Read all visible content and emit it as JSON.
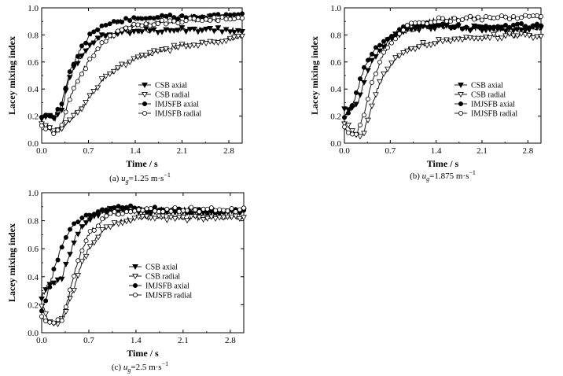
{
  "figure": {
    "panels": [
      {
        "id": "a",
        "caption_prefix": "(a) ",
        "caption_var": "u",
        "caption_sub": "g",
        "caption_value": "=1.25 m·s",
        "caption_sup": "−1"
      },
      {
        "id": "b",
        "caption_prefix": "(b) ",
        "caption_var": "u",
        "caption_sub": "g",
        "caption_value": "=1.875 m·s",
        "caption_sup": "−1"
      },
      {
        "id": "c",
        "caption_prefix": "(c) ",
        "caption_var": "u",
        "caption_sub": "g",
        "caption_value": "=2.5 m·s",
        "caption_sup": "−1"
      }
    ]
  },
  "chart_data": [
    {
      "type": "line",
      "xlabel": "Time / s",
      "ylabel": "Lacey mixing index",
      "xlim": [
        0,
        3.0
      ],
      "ylim": [
        0,
        1.0
      ],
      "xticks": [
        "0.0",
        "0.7",
        "1.4",
        "2.1",
        "2.8"
      ],
      "yticks": [
        "0.0",
        "0.2",
        "0.4",
        "0.6",
        "0.8",
        "1.0"
      ],
      "legend_position": "center-right",
      "series": [
        {
          "name": "CSB axial",
          "marker": "triangle-down-filled",
          "points": [
            [
              0,
              0.19
            ],
            [
              0.1,
              0.2
            ],
            [
              0.2,
              0.18
            ],
            [
              0.3,
              0.25
            ],
            [
              0.4,
              0.45
            ],
            [
              0.5,
              0.57
            ],
            [
              0.6,
              0.65
            ],
            [
              0.7,
              0.71
            ],
            [
              0.8,
              0.76
            ],
            [
              0.9,
              0.79
            ],
            [
              1.0,
              0.8
            ],
            [
              1.2,
              0.82
            ],
            [
              1.4,
              0.83
            ],
            [
              1.7,
              0.83
            ],
            [
              2.0,
              0.84
            ],
            [
              2.4,
              0.84
            ],
            [
              2.8,
              0.84
            ],
            [
              3.0,
              0.83
            ]
          ]
        },
        {
          "name": "CSB radial",
          "marker": "triangle-down-open",
          "points": [
            [
              0,
              0.16
            ],
            [
              0.1,
              0.12
            ],
            [
              0.2,
              0.08
            ],
            [
              0.3,
              0.1
            ],
            [
              0.4,
              0.16
            ],
            [
              0.5,
              0.22
            ],
            [
              0.6,
              0.27
            ],
            [
              0.7,
              0.33
            ],
            [
              0.8,
              0.4
            ],
            [
              0.9,
              0.46
            ],
            [
              1.0,
              0.51
            ],
            [
              1.2,
              0.57
            ],
            [
              1.4,
              0.62
            ],
            [
              1.7,
              0.67
            ],
            [
              2.0,
              0.71
            ],
            [
              2.4,
              0.74
            ],
            [
              2.8,
              0.77
            ],
            [
              3.0,
              0.79
            ]
          ]
        },
        {
          "name": "IMJSFB axial",
          "marker": "circle-filled",
          "points": [
            [
              0,
              0.2
            ],
            [
              0.1,
              0.19
            ],
            [
              0.2,
              0.21
            ],
            [
              0.3,
              0.3
            ],
            [
              0.4,
              0.5
            ],
            [
              0.5,
              0.62
            ],
            [
              0.6,
              0.71
            ],
            [
              0.7,
              0.78
            ],
            [
              0.8,
              0.84
            ],
            [
              0.9,
              0.87
            ],
            [
              1.0,
              0.88
            ],
            [
              1.2,
              0.9
            ],
            [
              1.4,
              0.92
            ],
            [
              1.7,
              0.93
            ],
            [
              2.0,
              0.93
            ],
            [
              2.4,
              0.94
            ],
            [
              2.8,
              0.94
            ],
            [
              3.0,
              0.94
            ]
          ]
        },
        {
          "name": "IMJSFB radial",
          "marker": "circle-open",
          "points": [
            [
              0,
              0.14
            ],
            [
              0.1,
              0.11
            ],
            [
              0.2,
              0.06
            ],
            [
              0.3,
              0.14
            ],
            [
              0.4,
              0.3
            ],
            [
              0.5,
              0.42
            ],
            [
              0.6,
              0.52
            ],
            [
              0.7,
              0.6
            ],
            [
              0.8,
              0.67
            ],
            [
              0.9,
              0.73
            ],
            [
              1.0,
              0.78
            ],
            [
              1.2,
              0.84
            ],
            [
              1.4,
              0.87
            ],
            [
              1.7,
              0.89
            ],
            [
              2.0,
              0.9
            ],
            [
              2.4,
              0.91
            ],
            [
              2.8,
              0.92
            ],
            [
              3.0,
              0.92
            ]
          ]
        }
      ]
    },
    {
      "type": "line",
      "xlabel": "Time / s",
      "ylabel": "Lacey mixing index",
      "xlim": [
        0,
        3.0
      ],
      "ylim": [
        0,
        1.0
      ],
      "xticks": [
        "0.0",
        "0.7",
        "1.4",
        "2.1",
        "2.8"
      ],
      "yticks": [
        "0.0",
        "0.2",
        "0.4",
        "0.6",
        "0.8",
        "1.0"
      ],
      "legend_position": "center-right",
      "series": [
        {
          "name": "CSB axial",
          "marker": "triangle-down-filled",
          "points": [
            [
              0,
              0.26
            ],
            [
              0.1,
              0.25
            ],
            [
              0.2,
              0.28
            ],
            [
              0.3,
              0.45
            ],
            [
              0.4,
              0.58
            ],
            [
              0.5,
              0.66
            ],
            [
              0.6,
              0.72
            ],
            [
              0.7,
              0.77
            ],
            [
              0.8,
              0.8
            ],
            [
              0.9,
              0.82
            ],
            [
              1.0,
              0.83
            ],
            [
              1.2,
              0.85
            ],
            [
              1.4,
              0.86
            ],
            [
              1.7,
              0.85
            ],
            [
              2.0,
              0.85
            ],
            [
              2.4,
              0.84
            ],
            [
              2.8,
              0.85
            ],
            [
              3.0,
              0.84
            ]
          ]
        },
        {
          "name": "CSB radial",
          "marker": "triangle-down-open",
          "points": [
            [
              0,
              0.15
            ],
            [
              0.1,
              0.1
            ],
            [
              0.2,
              0.05
            ],
            [
              0.3,
              0.08
            ],
            [
              0.4,
              0.25
            ],
            [
              0.5,
              0.4
            ],
            [
              0.6,
              0.5
            ],
            [
              0.7,
              0.58
            ],
            [
              0.8,
              0.63
            ],
            [
              0.9,
              0.67
            ],
            [
              1.0,
              0.7
            ],
            [
              1.2,
              0.73
            ],
            [
              1.4,
              0.75
            ],
            [
              1.7,
              0.77
            ],
            [
              2.0,
              0.78
            ],
            [
              2.4,
              0.79
            ],
            [
              2.8,
              0.8
            ],
            [
              3.0,
              0.79
            ]
          ]
        },
        {
          "name": "IMJSFB axial",
          "marker": "circle-filled",
          "points": [
            [
              0,
              0.2
            ],
            [
              0.1,
              0.24
            ],
            [
              0.2,
              0.4
            ],
            [
              0.3,
              0.55
            ],
            [
              0.4,
              0.65
            ],
            [
              0.5,
              0.71
            ],
            [
              0.6,
              0.75
            ],
            [
              0.7,
              0.78
            ],
            [
              0.8,
              0.82
            ],
            [
              0.9,
              0.85
            ],
            [
              1.0,
              0.87
            ],
            [
              1.2,
              0.88
            ],
            [
              1.4,
              0.88
            ],
            [
              1.7,
              0.86
            ],
            [
              2.0,
              0.85
            ],
            [
              2.4,
              0.86
            ],
            [
              2.8,
              0.87
            ],
            [
              3.0,
              0.87
            ]
          ]
        },
        {
          "name": "IMJSFB radial",
          "marker": "circle-open",
          "points": [
            [
              0,
              0.12
            ],
            [
              0.1,
              0.07
            ],
            [
              0.2,
              0.08
            ],
            [
              0.3,
              0.22
            ],
            [
              0.4,
              0.42
            ],
            [
              0.5,
              0.55
            ],
            [
              0.6,
              0.66
            ],
            [
              0.7,
              0.74
            ],
            [
              0.8,
              0.8
            ],
            [
              0.9,
              0.84
            ],
            [
              1.0,
              0.87
            ],
            [
              1.2,
              0.89
            ],
            [
              1.4,
              0.91
            ],
            [
              1.7,
              0.92
            ],
            [
              2.0,
              0.92
            ],
            [
              2.4,
              0.93
            ],
            [
              2.8,
              0.93
            ],
            [
              3.0,
              0.93
            ]
          ]
        }
      ]
    },
    {
      "type": "line",
      "xlabel": "Time / s",
      "ylabel": "Lacey mixing index",
      "xlim": [
        0,
        3.0
      ],
      "ylim": [
        0,
        1.0
      ],
      "xticks": [
        "0.0",
        "0.7",
        "1.4",
        "2.1",
        "2.8"
      ],
      "yticks": [
        "0.0",
        "0.2",
        "0.4",
        "0.6",
        "0.8",
        "1.0"
      ],
      "legend_position": "center-right",
      "series": [
        {
          "name": "CSB axial",
          "marker": "triangle-down-filled",
          "points": [
            [
              0,
              0.25
            ],
            [
              0.1,
              0.35
            ],
            [
              0.2,
              0.36
            ],
            [
              0.3,
              0.4
            ],
            [
              0.4,
              0.55
            ],
            [
              0.5,
              0.68
            ],
            [
              0.6,
              0.76
            ],
            [
              0.7,
              0.81
            ],
            [
              0.8,
              0.84
            ],
            [
              0.9,
              0.86
            ],
            [
              1.0,
              0.87
            ],
            [
              1.2,
              0.88
            ],
            [
              1.4,
              0.87
            ],
            [
              1.7,
              0.86
            ],
            [
              2.0,
              0.86
            ],
            [
              2.4,
              0.85
            ],
            [
              2.8,
              0.86
            ],
            [
              3.0,
              0.86
            ]
          ]
        },
        {
          "name": "CSB radial",
          "marker": "triangle-down-open",
          "points": [
            [
              0,
              0.2
            ],
            [
              0.1,
              0.1
            ],
            [
              0.2,
              0.06
            ],
            [
              0.3,
              0.1
            ],
            [
              0.4,
              0.2
            ],
            [
              0.5,
              0.35
            ],
            [
              0.6,
              0.5
            ],
            [
              0.7,
              0.6
            ],
            [
              0.8,
              0.67
            ],
            [
              0.9,
              0.72
            ],
            [
              1.0,
              0.76
            ],
            [
              1.2,
              0.8
            ],
            [
              1.4,
              0.82
            ],
            [
              1.7,
              0.82
            ],
            [
              2.0,
              0.82
            ],
            [
              2.4,
              0.82
            ],
            [
              2.8,
              0.83
            ],
            [
              3.0,
              0.82
            ]
          ]
        },
        {
          "name": "IMJSFB axial",
          "marker": "circle-filled",
          "points": [
            [
              0,
              0.15
            ],
            [
              0.1,
              0.3
            ],
            [
              0.2,
              0.48
            ],
            [
              0.3,
              0.62
            ],
            [
              0.4,
              0.72
            ],
            [
              0.5,
              0.78
            ],
            [
              0.6,
              0.82
            ],
            [
              0.7,
              0.84
            ],
            [
              0.8,
              0.86
            ],
            [
              0.9,
              0.88
            ],
            [
              1.0,
              0.89
            ],
            [
              1.2,
              0.9
            ],
            [
              1.4,
              0.89
            ],
            [
              1.7,
              0.88
            ],
            [
              2.0,
              0.88
            ],
            [
              2.4,
              0.87
            ],
            [
              2.8,
              0.87
            ],
            [
              3.0,
              0.87
            ]
          ]
        },
        {
          "name": "IMJSFB radial",
          "marker": "circle-open",
          "points": [
            [
              0,
              0.1
            ],
            [
              0.1,
              0.07
            ],
            [
              0.2,
              0.06
            ],
            [
              0.3,
              0.1
            ],
            [
              0.4,
              0.25
            ],
            [
              0.5,
              0.45
            ],
            [
              0.6,
              0.6
            ],
            [
              0.7,
              0.7
            ],
            [
              0.8,
              0.76
            ],
            [
              0.9,
              0.81
            ],
            [
              1.0,
              0.84
            ],
            [
              1.2,
              0.86
            ],
            [
              1.4,
              0.87
            ],
            [
              1.7,
              0.88
            ],
            [
              2.0,
              0.88
            ],
            [
              2.4,
              0.88
            ],
            [
              2.8,
              0.88
            ],
            [
              3.0,
              0.88
            ]
          ]
        }
      ]
    }
  ]
}
